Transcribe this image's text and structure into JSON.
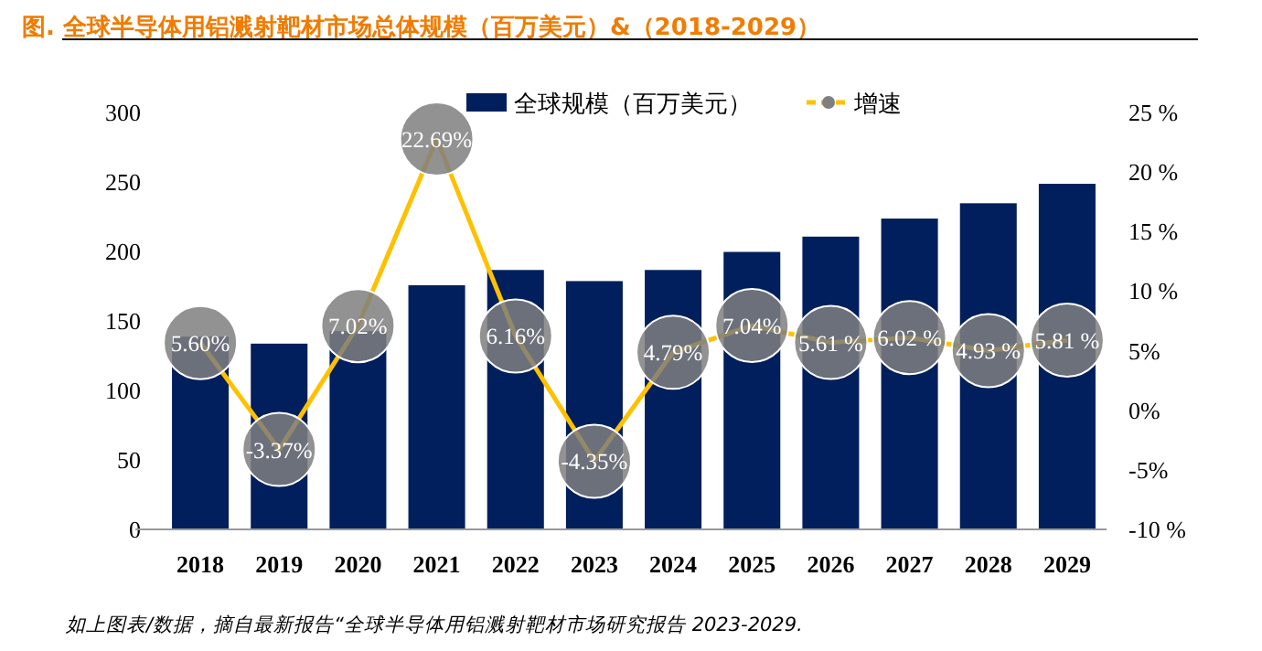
{
  "chart_data": {
    "type": "bar",
    "title": "图.  全球半导体用铝溅射靶材市场总体规模（百万美元）&（2018-2029）",
    "categories": [
      "2018",
      "2019",
      "2020",
      "2021",
      "2022",
      "2023",
      "2024",
      "2025",
      "2026",
      "2027",
      "2028",
      "2029"
    ],
    "series": [
      {
        "name": "全球规模（百万美元）",
        "color": "#001f5c",
        "values": [
          138,
          133,
          142,
          175,
          186,
          178,
          186,
          199,
          210,
          223,
          234,
          248
        ]
      },
      {
        "name": "增速",
        "type": "line",
        "axis": "y2",
        "color": "#ffc000",
        "marker": "circle",
        "values": [
          5.6,
          -3.37,
          7.02,
          22.69,
          6.16,
          -4.35,
          4.79,
          7.04,
          5.61,
          6.02,
          4.93,
          5.81
        ],
        "value_labels": [
          "5.60%",
          "-3.37%",
          "7.02%",
          "22.69%",
          "6.16%",
          "-4.35%",
          "4.79%",
          "7.04%",
          "5.61 %",
          "6.02 %",
          "4.93 %",
          "5.81 %"
        ]
      }
    ],
    "ylim": [
      0,
      300
    ],
    "yticks": [
      0,
      50,
      100,
      150,
      200,
      250,
      300
    ],
    "y2lim": [
      -10,
      25
    ],
    "y2ticks": [
      {
        "value": -10,
        "label": "-10 %"
      },
      {
        "value": -5,
        "label": "-5%"
      },
      {
        "value": 0,
        "label": "0%"
      },
      {
        "value": 5,
        "label": "5%"
      },
      {
        "value": 10,
        "label": "10 %"
      },
      {
        "value": 15,
        "label": "15 %"
      },
      {
        "value": 20,
        "label": "20 %"
      },
      {
        "value": 25,
        "label": "25 %"
      }
    ],
    "grid": false,
    "legend": "top",
    "annotations": [
      "如上图表/数据，摘自最新报告“全球半导体用铝溅射靶材市场研究报告 2023-2029."
    ]
  }
}
